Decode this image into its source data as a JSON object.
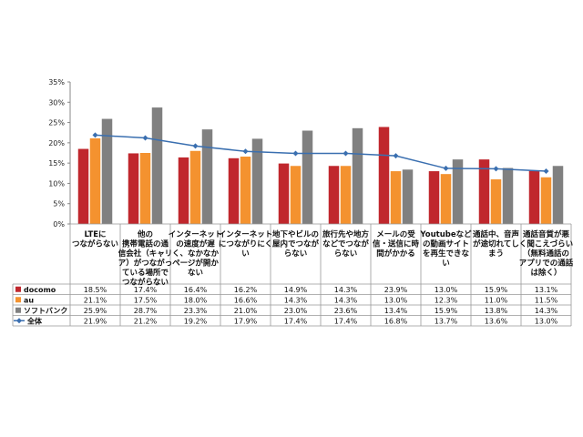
{
  "chart_data": {
    "type": "bar",
    "ylim": [
      0,
      35
    ],
    "y_ticks": [
      "0%",
      "5%",
      "10%",
      "15%",
      "20%",
      "25%",
      "30%",
      "35%"
    ],
    "grid": false,
    "legend_placement": "left, in data table",
    "categories": [
      [
        "LTEに",
        "つながらない"
      ],
      [
        "他の",
        "携帯電話の通",
        "信会社（キャリ",
        "ア）がつながっ",
        "ている場所で",
        "つながらない"
      ],
      [
        "インターネット",
        "の速度が遅",
        "く、なかなか",
        "ページが開か",
        "ない"
      ],
      [
        "インターネット",
        "につながりにく",
        "い"
      ],
      [
        "地下やビルの",
        "屋内でつなが",
        "らない"
      ],
      [
        "旅行先や地方",
        "などでつなが",
        "らない"
      ],
      [
        "メールの受",
        "信・送信に時",
        "間がかかる"
      ],
      [
        "Youtubeなど",
        "の動画サイト",
        "を再生できな",
        "い"
      ],
      [
        "通話中、音声",
        "が途切れてし",
        "まう"
      ],
      [
        "通話音質が悪",
        "く聞こえづらい",
        "（無料通話の",
        "アプリでの通話",
        "は除く）"
      ]
    ],
    "series": [
      {
        "name": "docomo",
        "kind": "bar",
        "color": "#c0272d",
        "values": [
          18.5,
          17.4,
          16.4,
          16.2,
          14.9,
          14.3,
          23.9,
          13.0,
          15.9,
          13.1
        ],
        "labels": [
          "18.5%",
          "17.4%",
          "16.4%",
          "16.2%",
          "14.9%",
          "14.3%",
          "23.9%",
          "13.0%",
          "15.9%",
          "13.1%"
        ]
      },
      {
        "name": "au",
        "kind": "bar",
        "color": "#f4922f",
        "values": [
          21.1,
          17.5,
          18.0,
          16.6,
          14.3,
          14.3,
          13.0,
          12.3,
          11.0,
          11.5
        ],
        "labels": [
          "21.1%",
          "17.5%",
          "18.0%",
          "16.6%",
          "14.3%",
          "14.3%",
          "13.0%",
          "12.3%",
          "11.0%",
          "11.5%"
        ]
      },
      {
        "name": "ソフトバンク",
        "kind": "bar",
        "color": "#808080",
        "values": [
          25.9,
          28.7,
          23.3,
          21.0,
          23.0,
          23.6,
          13.4,
          15.9,
          13.8,
          14.3
        ],
        "labels": [
          "25.9%",
          "28.7%",
          "23.3%",
          "21.0%",
          "23.0%",
          "23.6%",
          "13.4%",
          "15.9%",
          "13.8%",
          "14.3%"
        ]
      },
      {
        "name": "全体",
        "kind": "line",
        "color": "#3a6fb0",
        "values": [
          21.9,
          21.2,
          19.2,
          17.9,
          17.4,
          17.4,
          16.8,
          13.7,
          13.6,
          13.0
        ],
        "labels": [
          "21.9%",
          "21.2%",
          "19.2%",
          "17.9%",
          "17.4%",
          "17.4%",
          "16.8%",
          "13.7%",
          "13.6%",
          "13.0%"
        ]
      }
    ]
  }
}
